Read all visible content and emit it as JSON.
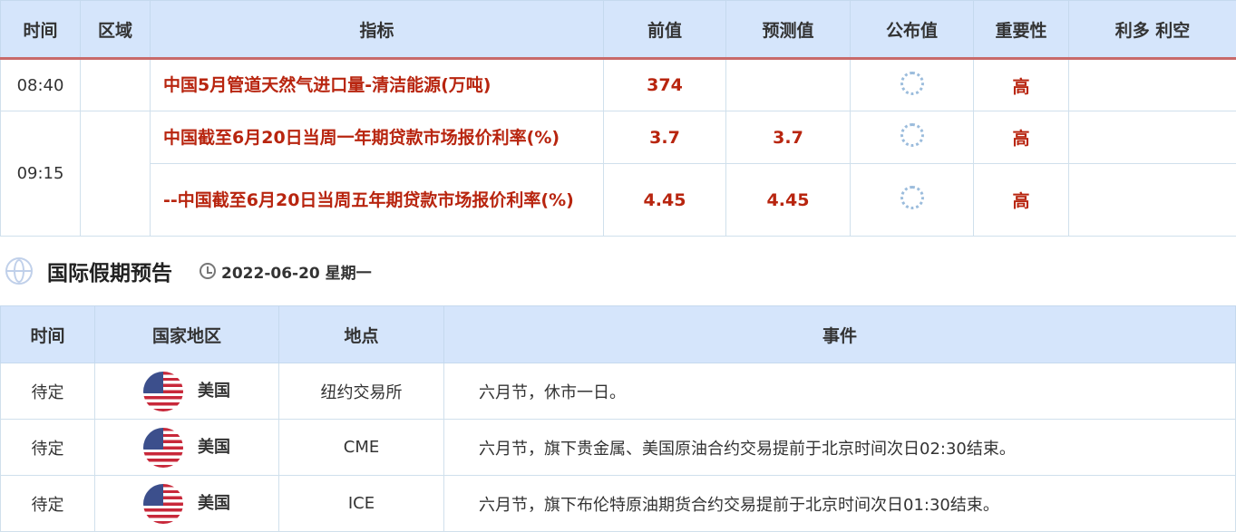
{
  "calendar": {
    "headers": [
      "时间",
      "区域",
      "指标",
      "前值",
      "预测值",
      "公布值",
      "重要性",
      "利多 利空"
    ],
    "rows": [
      {
        "time": "08:40",
        "indicator": "中国5月管道天然气进口量-清洁能源(万吨)",
        "previous": "374",
        "forecast": "",
        "importance": "高"
      },
      {
        "time": "09:15",
        "indicator": "中国截至6月20日当周一年期贷款市场报价利率(%)",
        "previous": "3.7",
        "forecast": "3.7",
        "importance": "高"
      },
      {
        "time": "",
        "indicator": "--中国截至6月20日当周五年期贷款市场报价利率(%)",
        "previous": "4.45",
        "forecast": "4.45",
        "importance": "高"
      }
    ]
  },
  "holiday": {
    "title": "国际假期预告",
    "date": "2022-06-20 星期一",
    "headers": [
      "时间",
      "国家地区",
      "地点",
      "事件"
    ],
    "rows": [
      {
        "time": "待定",
        "country": "美国",
        "place": "纽约交易所",
        "event": "六月节，休市一日。"
      },
      {
        "time": "待定",
        "country": "美国",
        "place": "CME",
        "event": "六月节，旗下贵金属、美国原油合约交易提前于北京时间次日02:30结束。"
      },
      {
        "time": "待定",
        "country": "美国",
        "place": "ICE",
        "event": "六月节，旗下布伦特原油期货合约交易提前于北京时间次日01:30结束。"
      }
    ]
  },
  "colors": {
    "accent_red": "#b8250f",
    "header_bg": "#d5e5fb"
  }
}
